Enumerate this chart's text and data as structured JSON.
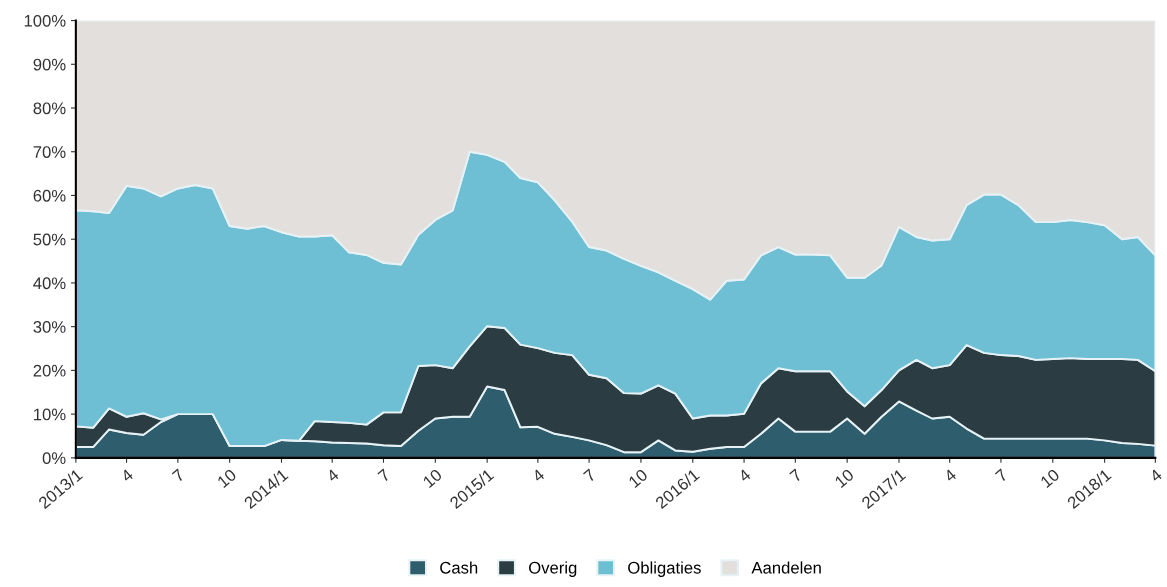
{
  "chart_data": {
    "type": "area",
    "stacked": true,
    "legend": "bottom",
    "grid": false,
    "x": [
      "2013-01",
      "2013-02",
      "2013-03",
      "2013-04",
      "2013-05",
      "2013-06",
      "2013-07",
      "2013-08",
      "2013-09",
      "2013-10",
      "2013-11",
      "2013-12",
      "2014-01",
      "2014-02",
      "2014-03",
      "2014-04",
      "2014-05",
      "2014-06",
      "2014-07",
      "2014-08",
      "2014-09",
      "2014-10",
      "2014-11",
      "2014-12",
      "2015-01",
      "2015-02",
      "2015-03",
      "2015-04",
      "2015-05",
      "2015-06",
      "2015-07",
      "2015-08",
      "2015-09",
      "2015-10",
      "2015-11",
      "2015-12",
      "2016-01",
      "2016-02",
      "2016-03",
      "2016-04",
      "2016-05",
      "2016-06",
      "2016-07",
      "2016-08",
      "2016-09",
      "2016-10",
      "2016-11",
      "2016-12",
      "2017-01",
      "2017-02",
      "2017-03",
      "2017-04",
      "2017-05",
      "2017-06",
      "2017-07",
      "2017-08",
      "2017-09",
      "2017-10",
      "2017-11",
      "2017-12",
      "2018-01",
      "2018-02",
      "2018-03",
      "2018-04"
    ],
    "series": [
      {
        "name": "Cash",
        "color": "#2e5d6e",
        "values": [
          2.5,
          2.5,
          6.5,
          5.7,
          5.3,
          8.2,
          10,
          10,
          10,
          2.7,
          2.7,
          2.7,
          4.1,
          3.9,
          3.8,
          3.5,
          3.4,
          3.3,
          2.9,
          2.7,
          6.2,
          9,
          9.4,
          9.4,
          16.3,
          15.5,
          7,
          7.1,
          5.5,
          4.8,
          4,
          2.9,
          1.3,
          1.3,
          4,
          1.7,
          1.4,
          2.1,
          2.5,
          2.5,
          5.5,
          9,
          6,
          6,
          6,
          9,
          5.5,
          9.4,
          12.9,
          10.8,
          9,
          9.4,
          6.7,
          4.4,
          4.4,
          4.4,
          4.4,
          4.4,
          4.4,
          4.4,
          4,
          3.4,
          3.2,
          2.8
        ]
      },
      {
        "name": "Overig",
        "color": "#2b3c43",
        "values": [
          4.7,
          4.4,
          4.8,
          3.7,
          4.9,
          0.6,
          0,
          0,
          0,
          0,
          0,
          0,
          0,
          0,
          4.6,
          4.7,
          4.6,
          4.3,
          7.5,
          7.7,
          14.8,
          12.2,
          11.1,
          16.1,
          13.8,
          14.2,
          18.9,
          18,
          18.5,
          18.7,
          15,
          15.3,
          13.5,
          13.4,
          12.6,
          13,
          7.6,
          7.6,
          7.2,
          7.6,
          11.5,
          11.5,
          13.8,
          13.8,
          13.8,
          6.2,
          6.3,
          6.1,
          7.1,
          11.6,
          11.5,
          11.8,
          19.1,
          19.6,
          19.1,
          18.9,
          18,
          18.2,
          18.4,
          18.2,
          18.6,
          19.2,
          19.2,
          17
        ]
      },
      {
        "name": "Obligaties",
        "color": "#6fbfd4",
        "values": [
          49.4,
          49.5,
          44.7,
          52.8,
          51.4,
          51,
          51.6,
          52.4,
          51.6,
          50.3,
          49.7,
          50.3,
          47.5,
          46.7,
          42.2,
          42.7,
          39,
          38.8,
          34.2,
          33.8,
          30,
          33.2,
          36.1,
          44.5,
          39.2,
          38,
          38.1,
          37.9,
          34.9,
          30.5,
          29.2,
          29.2,
          30.7,
          29.2,
          25.8,
          25.8,
          29.6,
          26.5,
          30.8,
          30.7,
          29.3,
          27.7,
          26.7,
          26.7,
          26.5,
          26,
          29.4,
          28.5,
          32.8,
          28.1,
          29.2,
          28.8,
          32,
          36.2,
          36.7,
          34.5,
          31.5,
          31.3,
          31.6,
          31.3,
          30.6,
          27.4,
          28.1,
          26.5
        ]
      },
      {
        "name": "Aandelen",
        "color": "#e2dfdd",
        "values": [
          43.4,
          43.6,
          44,
          37.8,
          38.4,
          40.2,
          38.4,
          37.6,
          38.4,
          47,
          47.6,
          47,
          48.4,
          49.4,
          49.4,
          49.1,
          53,
          53.6,
          55.4,
          55.8,
          49,
          45.6,
          43.4,
          30,
          30.7,
          32.3,
          36,
          37,
          41.1,
          46,
          51.8,
          52.6,
          54.5,
          56.1,
          57.6,
          59.5,
          61.4,
          63.8,
          59.5,
          59.2,
          53.7,
          51.8,
          53.5,
          53.5,
          53.7,
          58.8,
          58.8,
          56,
          47.2,
          49.5,
          50.3,
          50,
          42.2,
          39.8,
          39.8,
          42.2,
          46.1,
          46.1,
          45.6,
          46.1,
          46.8,
          50,
          49.5,
          53.7
        ]
      }
    ],
    "ylim": [
      0,
      100
    ],
    "yticks": [
      {
        "value": 0,
        "label": "0%"
      },
      {
        "value": 10,
        "label": "10%"
      },
      {
        "value": 20,
        "label": "20%"
      },
      {
        "value": 30,
        "label": "30%"
      },
      {
        "value": 40,
        "label": "40%"
      },
      {
        "value": 50,
        "label": "50%"
      },
      {
        "value": 60,
        "label": "60%"
      },
      {
        "value": 70,
        "label": "70%"
      },
      {
        "value": 80,
        "label": "80%"
      },
      {
        "value": 90,
        "label": "90%"
      },
      {
        "value": 100,
        "label": "100%"
      }
    ],
    "xlim": [
      "2013-01",
      "2018-04"
    ],
    "xticks": [
      {
        "value": "2013-01",
        "label": "2013/1"
      },
      {
        "value": "2013-04",
        "label": "4"
      },
      {
        "value": "2013-07",
        "label": "7"
      },
      {
        "value": "2013-10",
        "label": "10"
      },
      {
        "value": "2014-01",
        "label": "2014/1"
      },
      {
        "value": "2014-04",
        "label": "4"
      },
      {
        "value": "2014-07",
        "label": "7"
      },
      {
        "value": "2014-10",
        "label": "10"
      },
      {
        "value": "2015-01",
        "label": "2015/1"
      },
      {
        "value": "2015-04",
        "label": "4"
      },
      {
        "value": "2015-07",
        "label": "7"
      },
      {
        "value": "2015-10",
        "label": "10"
      },
      {
        "value": "2016-01",
        "label": "2016/1"
      },
      {
        "value": "2016-04",
        "label": "4"
      },
      {
        "value": "2016-07",
        "label": "7"
      },
      {
        "value": "2016-10",
        "label": "10"
      },
      {
        "value": "2017-01",
        "label": "2017/1"
      },
      {
        "value": "2017-04",
        "label": "4"
      },
      {
        "value": "2017-07",
        "label": "7"
      },
      {
        "value": "2017-10",
        "label": "10"
      },
      {
        "value": "2018-01",
        "label": "2018/1"
      },
      {
        "value": "2018-04",
        "label": "4"
      }
    ]
  }
}
